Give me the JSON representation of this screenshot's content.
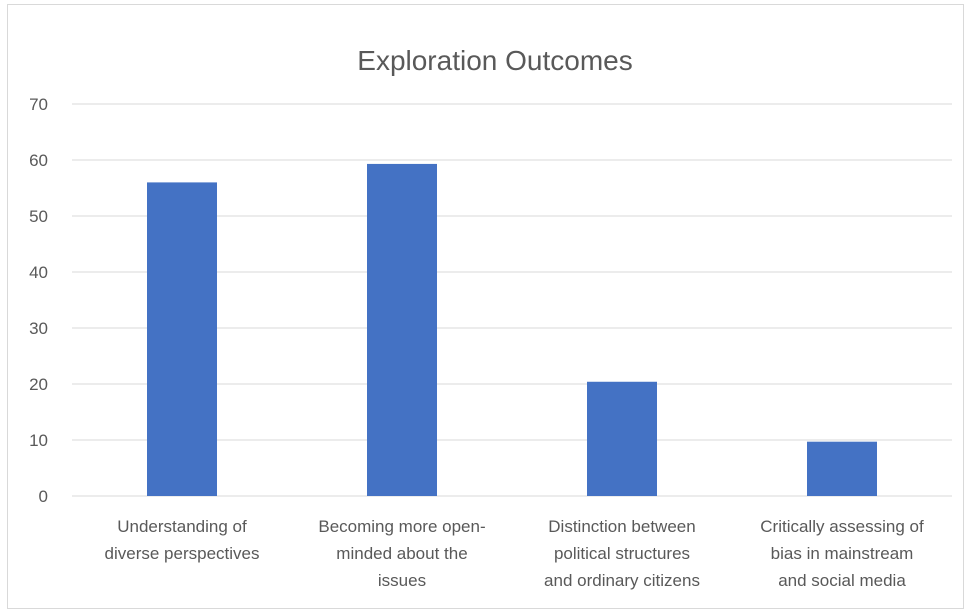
{
  "chart_data": {
    "type": "bar",
    "title": "Exploration Outcomes",
    "categories": [
      [
        "Understanding of",
        "diverse perspectives"
      ],
      [
        "Becoming more open-",
        "minded about the",
        "issues"
      ],
      [
        "Distinction between",
        "political structures",
        "and ordinary citizens"
      ],
      [
        "Critically assessing of",
        "bias in mainstream",
        "and social media"
      ]
    ],
    "values": [
      56,
      59.3,
      20.4,
      9.7
    ],
    "ylim": [
      0,
      70
    ],
    "yticks": [
      0,
      10,
      20,
      30,
      40,
      50,
      60,
      70
    ],
    "grid": true,
    "legend": "none",
    "bar_color": "#4472c4",
    "grid_color": "#d9d9d9"
  }
}
